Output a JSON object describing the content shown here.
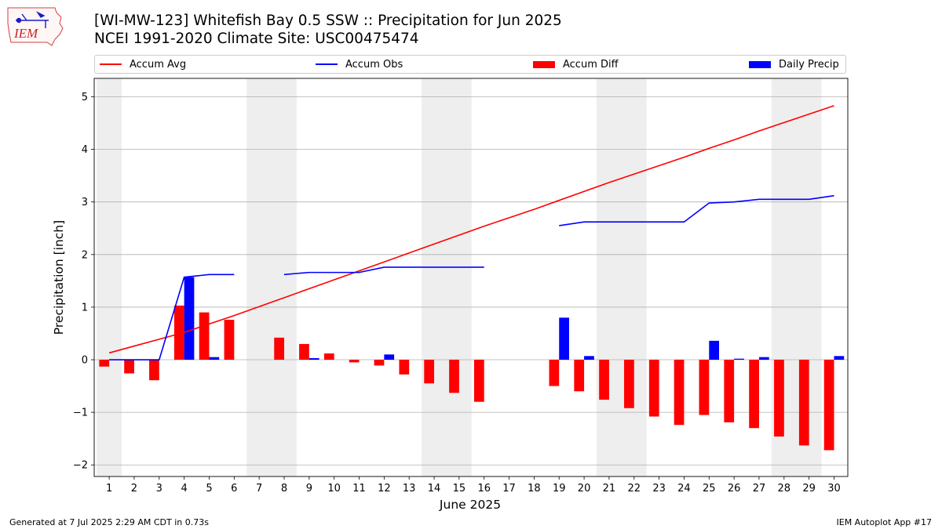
{
  "header": {
    "title_line1": "[WI-MW-123] Whitefish Bay 0.5 SSW :: Precipitation for Jun 2025",
    "title_line2": "NCEI 1991-2020 Climate Site: USC00475474",
    "logo_text": "IEM"
  },
  "legend": {
    "items": [
      {
        "label": "Accum Avg",
        "kind": "line",
        "color": "#ff0000"
      },
      {
        "label": "Accum Obs",
        "kind": "line",
        "color": "#0000ff"
      },
      {
        "label": "Accum Diff",
        "kind": "bar",
        "color": "#ff0000"
      },
      {
        "label": "Daily Precip",
        "kind": "bar",
        "color": "#0000ff"
      }
    ]
  },
  "footer": {
    "generated": "Generated at 7 Jul 2025 2:29 AM CDT in 0.73s",
    "app": "IEM Autoplot App #17"
  },
  "chart_data": {
    "type": "bar",
    "xlabel": "June 2025",
    "ylabel": "Precipitation [inch]",
    "ylim": [
      -2.22,
      5.35
    ],
    "yticks": [
      -2,
      -1,
      0,
      1,
      2,
      3,
      4,
      5
    ],
    "ytick_labels": [
      "−2",
      "−1",
      "0",
      "1",
      "2",
      "3",
      "4",
      "5"
    ],
    "x": [
      1,
      2,
      3,
      4,
      5,
      6,
      7,
      8,
      9,
      10,
      11,
      12,
      13,
      14,
      15,
      16,
      17,
      18,
      19,
      20,
      21,
      22,
      23,
      24,
      25,
      26,
      27,
      28,
      29,
      30
    ],
    "grid": "horizontal",
    "weekend_shading": [
      [
        1,
        1
      ],
      [
        7,
        8
      ],
      [
        14,
        15
      ],
      [
        21,
        22
      ],
      [
        28,
        29
      ]
    ],
    "weekend_color": "#eeeeee",
    "series": [
      {
        "name": "Accum Avg",
        "kind": "line",
        "color": "#ff0000",
        "values": [
          0.13,
          0.26,
          0.39,
          0.52,
          0.68,
          0.84,
          1.01,
          1.18,
          1.35,
          1.52,
          1.69,
          1.86,
          2.03,
          2.2,
          2.37,
          2.54,
          2.7,
          2.86,
          3.03,
          3.2,
          3.37,
          3.53,
          3.69,
          3.85,
          4.02,
          4.18,
          4.35,
          4.51,
          4.67,
          4.83
        ]
      },
      {
        "name": "Accum Obs",
        "kind": "line",
        "color": "#0000ff",
        "values": [
          0,
          0,
          0,
          1.57,
          1.62,
          1.62,
          null,
          1.62,
          1.66,
          1.66,
          1.66,
          1.76,
          1.76,
          1.76,
          1.76,
          1.76,
          null,
          null,
          2.55,
          2.62,
          2.62,
          2.62,
          2.62,
          2.62,
          2.98,
          3.0,
          3.05,
          3.05,
          3.05,
          3.12
        ]
      },
      {
        "name": "Accum Diff",
        "kind": "bar",
        "color": "#ff0000",
        "values": [
          -0.13,
          -0.26,
          -0.39,
          1.03,
          0.9,
          0.76,
          null,
          0.42,
          0.3,
          0.12,
          -0.05,
          -0.11,
          -0.28,
          -0.45,
          -0.63,
          -0.8,
          null,
          null,
          -0.5,
          -0.6,
          -0.76,
          -0.92,
          -1.08,
          -1.24,
          -1.05,
          -1.19,
          -1.3,
          -1.46,
          -1.63,
          -1.72
        ]
      },
      {
        "name": "Daily Precip",
        "kind": "bar",
        "color": "#0000ff",
        "values": [
          0,
          0,
          0,
          1.57,
          0.05,
          0,
          null,
          0,
          0.03,
          0,
          0,
          0.1,
          0,
          0,
          0,
          0,
          null,
          null,
          0.8,
          0.07,
          0,
          0,
          0,
          0,
          0.36,
          0.02,
          0.05,
          0,
          0,
          0.07
        ]
      }
    ]
  }
}
